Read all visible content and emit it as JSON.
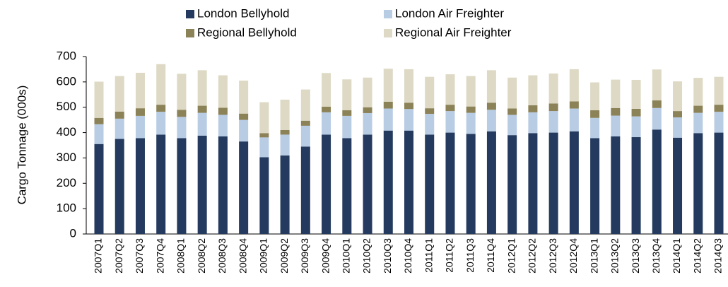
{
  "chart_data": {
    "type": "stacked_bar",
    "y_label": "Cargo Tonnage (000s)",
    "categories": [
      "2007Q1",
      "2007Q2",
      "2007Q3",
      "2007Q4",
      "2008Q1",
      "2008Q2",
      "2008Q3",
      "2008Q4",
      "2009Q1",
      "2009Q2",
      "2009Q3",
      "2009Q4",
      "2010Q1",
      "2010Q2",
      "2010Q3",
      "2010Q4",
      "2011Q1",
      "2011Q2",
      "2011Q3",
      "2011Q4",
      "2012Q1",
      "2012Q2",
      "2012Q3",
      "2012Q4",
      "2013Q1",
      "2013Q2",
      "2013Q3",
      "2013Q4",
      "2014Q1",
      "2014Q2",
      "2014Q3"
    ],
    "series": [
      {
        "name": "London Bellyhold",
        "color": "#243a5e",
        "values": [
          355,
          375,
          378,
          392,
          378,
          388,
          385,
          365,
          303,
          310,
          345,
          392,
          378,
          392,
          408,
          408,
          392,
          400,
          395,
          405,
          390,
          398,
          400,
          405,
          378,
          385,
          382,
          412,
          380,
          398,
          400
        ]
      },
      {
        "name": "London Air Freighter",
        "color": "#b8cce4",
        "values": [
          78,
          80,
          88,
          90,
          84,
          90,
          85,
          85,
          78,
          82,
          82,
          88,
          88,
          85,
          87,
          85,
          82,
          85,
          83,
          85,
          80,
          82,
          85,
          90,
          80,
          82,
          82,
          85,
          80,
          80,
          82
        ]
      },
      {
        "name": "Regional Bellyhold",
        "color": "#8c8258",
        "values": [
          25,
          28,
          30,
          28,
          28,
          28,
          28,
          25,
          17,
          18,
          20,
          22,
          22,
          23,
          27,
          25,
          22,
          25,
          25,
          28,
          25,
          28,
          30,
          28,
          30,
          30,
          30,
          30,
          25,
          28,
          28
        ]
      },
      {
        "name": "Regional Air Freighter",
        "color": "#ddd9c4",
        "values": [
          143,
          140,
          140,
          160,
          142,
          140,
          128,
          130,
          122,
          120,
          123,
          133,
          122,
          117,
          130,
          132,
          124,
          120,
          120,
          128,
          122,
          118,
          118,
          127,
          110,
          112,
          114,
          122,
          117,
          110,
          110
        ]
      }
    ],
    "ylim": [
      0,
      700
    ],
    "yticks": [
      0,
      100,
      200,
      300,
      400,
      500,
      600,
      700
    ]
  }
}
